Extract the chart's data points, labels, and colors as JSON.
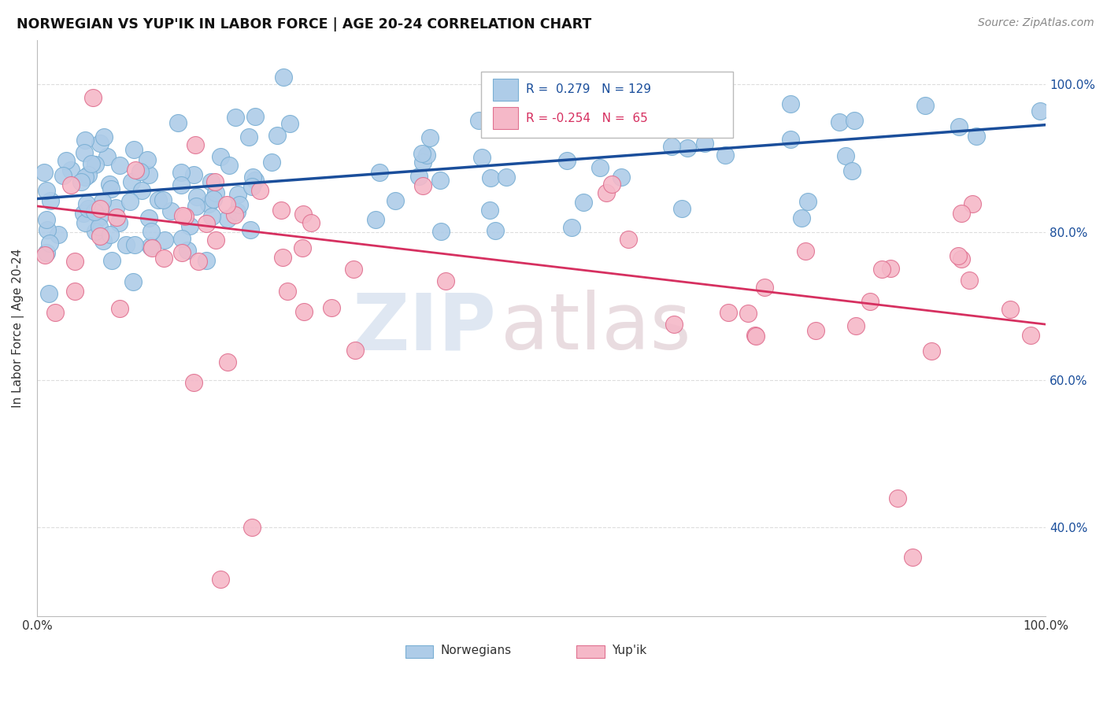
{
  "title": "NORWEGIAN VS YUP'IK IN LABOR FORCE | AGE 20-24 CORRELATION CHART",
  "source": "Source: ZipAtlas.com",
  "ylabel": "In Labor Force | Age 20-24",
  "xlim": [
    0,
    1
  ],
  "ylim": [
    0.28,
    1.06
  ],
  "r_norwegian": 0.279,
  "n_norwegian": 129,
  "r_yupik": -0.254,
  "n_yupik": 65,
  "norwegian_color": "#AECCE8",
  "norwegian_edge": "#7AAFD4",
  "yupik_color": "#F5B8C8",
  "yupik_edge": "#E07090",
  "trend_norwegian": "#1A4E9B",
  "trend_yupik": "#D63060",
  "watermark_zip": "#C5D5E8",
  "watermark_atlas": "#D8C0C8",
  "right_ytick_labels": [
    "100.0%",
    "80.0%",
    "60.0%",
    "40.0%"
  ],
  "right_ytick_vals": [
    1.0,
    0.8,
    0.6,
    0.4
  ],
  "background_color": "#FFFFFF",
  "grid_color": "#DDDDDD",
  "nor_trend_y0": 0.845,
  "nor_trend_y1": 0.945,
  "yup_trend_y0": 0.835,
  "yup_trend_y1": 0.675
}
